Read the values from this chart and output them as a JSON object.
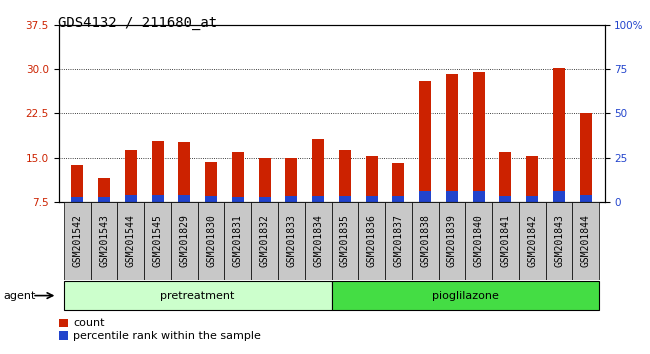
{
  "title": "GDS4132 / 211680_at",
  "samples": [
    "GSM201542",
    "GSM201543",
    "GSM201544",
    "GSM201545",
    "GSM201829",
    "GSM201830",
    "GSM201831",
    "GSM201832",
    "GSM201833",
    "GSM201834",
    "GSM201835",
    "GSM201836",
    "GSM201837",
    "GSM201838",
    "GSM201839",
    "GSM201840",
    "GSM201841",
    "GSM201842",
    "GSM201843",
    "GSM201844"
  ],
  "count_values": [
    13.8,
    11.5,
    16.2,
    17.8,
    17.7,
    14.2,
    16.0,
    15.0,
    15.0,
    18.2,
    16.2,
    15.3,
    14.0,
    28.0,
    29.2,
    29.5,
    16.0,
    15.2,
    30.2,
    22.5
  ],
  "percentile_values": [
    0.8,
    0.8,
    1.2,
    1.2,
    1.2,
    1.0,
    0.8,
    0.8,
    1.0,
    1.0,
    1.0,
    1.0,
    1.0,
    1.8,
    1.8,
    1.8,
    1.0,
    1.0,
    1.8,
    1.2
  ],
  "group_boundary": 10,
  "ylim_left": [
    7.5,
    37.5
  ],
  "ylim_right": [
    0,
    100
  ],
  "yticks_left": [
    7.5,
    15.0,
    22.5,
    30.0,
    37.5
  ],
  "yticks_right": [
    0,
    25,
    50,
    75,
    100
  ],
  "bar_color_red": "#cc2200",
  "bar_color_blue": "#2244cc",
  "bar_width": 0.45,
  "bg_color": "#ffffff",
  "tick_label_bg": "#cccccc",
  "legend_count_label": "count",
  "legend_pct_label": "percentile rank within the sample",
  "agent_label": "agent",
  "group_label_pretreatment": "pretreatment",
  "group_label_pioglilazone": "pioglilazone",
  "group_color_pre": "#ccffcc",
  "group_color_pio": "#44dd44",
  "title_fontsize": 10,
  "tick_fontsize": 7,
  "axis_label_color_left": "#cc2200",
  "axis_label_color_right": "#2244cc",
  "spine_color": "#000000"
}
